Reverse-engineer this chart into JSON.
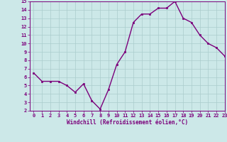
{
  "x": [
    0,
    1,
    2,
    3,
    4,
    5,
    6,
    7,
    8,
    9,
    10,
    11,
    12,
    13,
    14,
    15,
    16,
    17,
    18,
    19,
    20,
    21,
    22,
    23
  ],
  "y": [
    6.5,
    5.5,
    5.5,
    5.5,
    5.0,
    4.2,
    5.2,
    3.2,
    2.2,
    4.5,
    7.5,
    9.0,
    12.5,
    13.5,
    13.5,
    14.2,
    14.2,
    15.0,
    13.0,
    12.5,
    11.0,
    10.0,
    9.5,
    8.5
  ],
  "color": "#7b007b",
  "bg_color": "#cce8e8",
  "grid_color": "#aacccc",
  "xlabel": "Windchill (Refroidissement éolien,°C)",
  "ylim": [
    2,
    15
  ],
  "xlim": [
    -0.5,
    23
  ],
  "yticks": [
    2,
    3,
    4,
    5,
    6,
    7,
    8,
    9,
    10,
    11,
    12,
    13,
    14,
    15
  ],
  "xticks": [
    0,
    1,
    2,
    3,
    4,
    5,
    6,
    7,
    8,
    9,
    10,
    11,
    12,
    13,
    14,
    15,
    16,
    17,
    18,
    19,
    20,
    21,
    22,
    23
  ],
  "marker": "s",
  "markersize": 1.8,
  "linewidth": 1.0,
  "tick_fontsize": 5.0,
  "xlabel_fontsize": 5.5
}
